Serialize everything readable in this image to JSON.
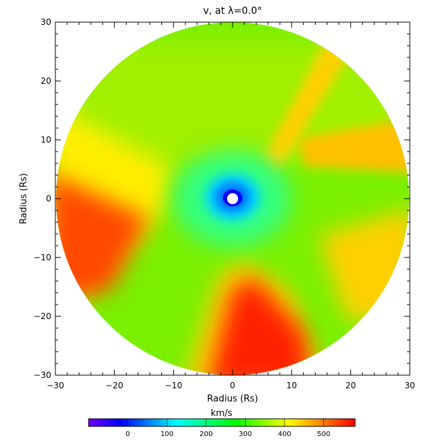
{
  "chart_data": {
    "type": "heatmap",
    "title": "v, at λ=0.0°",
    "xlabel": "Radius (Rs)",
    "ylabel": "Radius (Rs)",
    "xlim": [
      -30,
      30
    ],
    "ylim": [
      -30,
      30
    ],
    "x_ticks": [
      -30,
      -20,
      -10,
      0,
      10,
      20,
      30
    ],
    "y_ticks": [
      -30,
      -20,
      -10,
      0,
      10,
      20,
      30
    ],
    "x_tick_labels": [
      "−30",
      "−20",
      "−10",
      "0",
      "10",
      "20",
      "30"
    ],
    "y_tick_labels": [
      "−30",
      "−20",
      "−10",
      "0",
      "10",
      "20",
      "30"
    ],
    "domain": "disk of radius 30 Rs centered at origin, occulted center (white) ~1 Rs",
    "field_description_values_kms": {
      "center_region": 50,
      "mid_disk_green": 330,
      "left_lobe_max": 530,
      "bottom_lobe_max": 560,
      "upper_right_streak": 440,
      "right_lower_lobe": 480
    },
    "colorbar": {
      "label": "km/s",
      "min": -100,
      "max": 580,
      "ticks": [
        0,
        100,
        200,
        300,
        400,
        500
      ],
      "tick_labels": [
        "0",
        "100",
        "200",
        "300",
        "400",
        "500"
      ],
      "colormap": [
        "#6600ff",
        "#0000ff",
        "#00ffff",
        "#00ff00",
        "#ffff00",
        "#ff0000"
      ]
    },
    "grid": false
  }
}
